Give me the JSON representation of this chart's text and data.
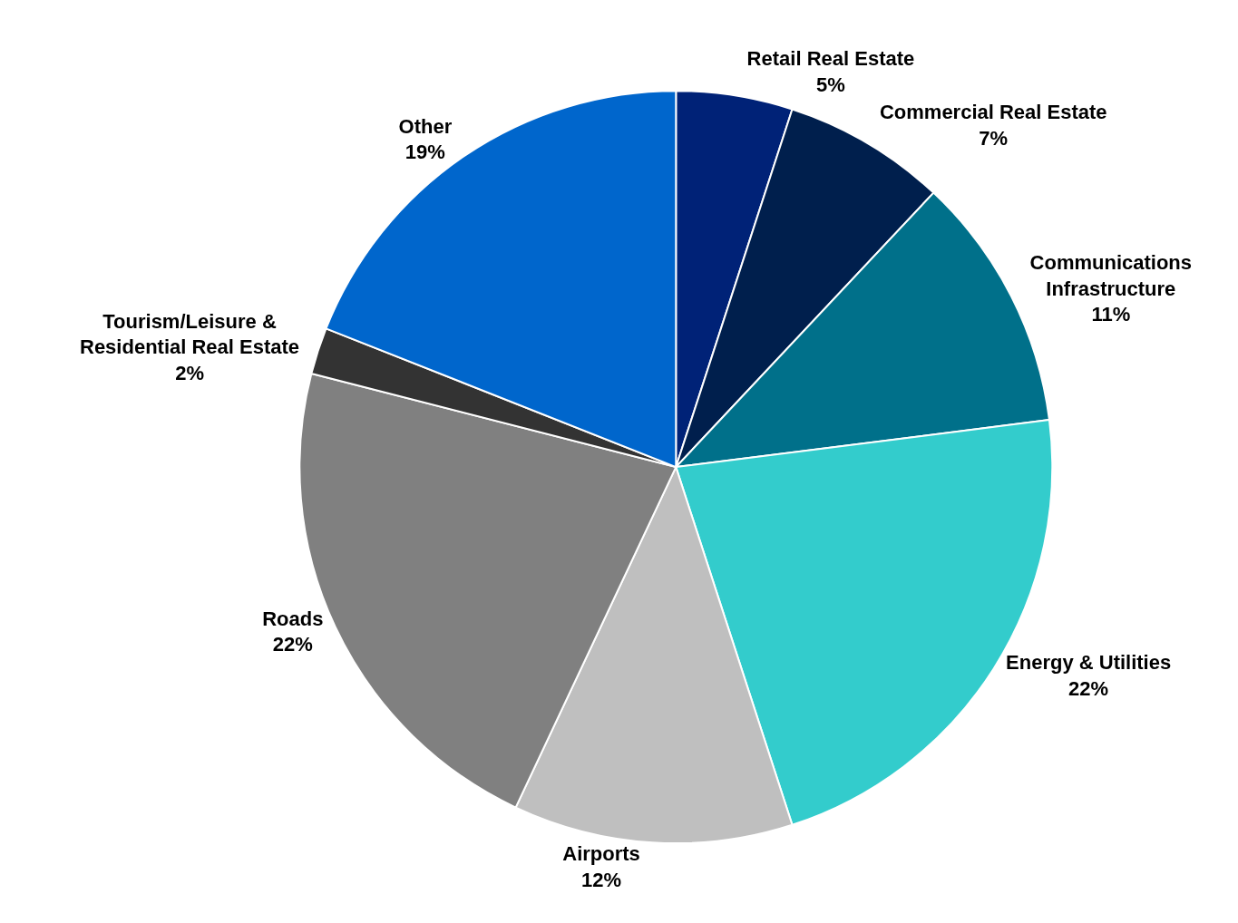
{
  "chart_data": {
    "type": "pie",
    "categories": [
      "Retail Real Estate",
      "Commercial Real Estate",
      "Communications Infrastructure",
      "Energy & Utilities",
      "Airports",
      "Roads",
      "Tourism/Leisure & Residential Real Estate",
      "Other"
    ],
    "values": [
      5,
      7,
      11,
      22,
      12,
      22,
      2,
      19
    ],
    "value_labels": [
      "5%",
      "7%",
      "11%",
      "22%",
      "12%",
      "22%",
      "2%",
      "19%"
    ],
    "colors": [
      "#002277",
      "#001f4d",
      "#00708a",
      "#33cccc",
      "#bfbfbf",
      "#808080",
      "#333333",
      "#0066cc"
    ],
    "legend": false
  }
}
